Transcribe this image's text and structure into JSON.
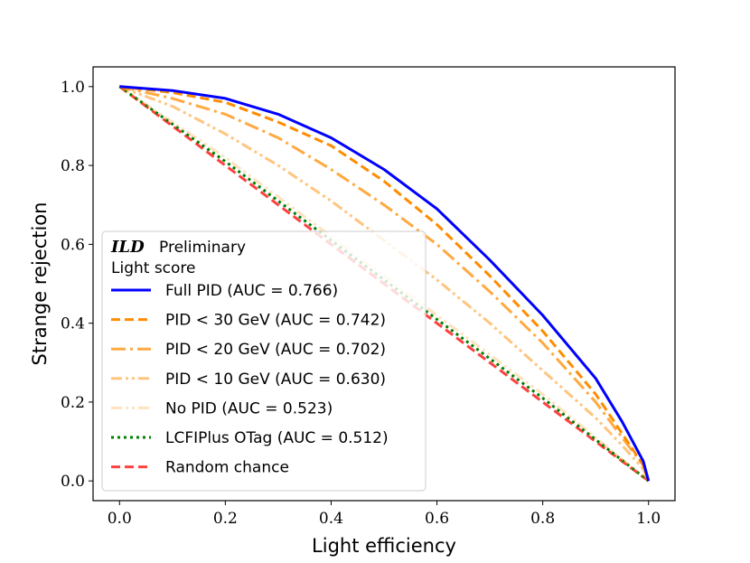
{
  "chart_data": {
    "type": "line",
    "xlabel": "Light efficiency",
    "ylabel": "Strange rejection",
    "xlim": [
      -0.05,
      1.05
    ],
    "ylim": [
      -0.05,
      1.05
    ],
    "x_ticks": [
      "0.0",
      "0.2",
      "0.4",
      "0.6",
      "0.8",
      "1.0"
    ],
    "y_ticks": [
      "0.0",
      "0.2",
      "0.4",
      "0.6",
      "0.8",
      "1.0"
    ],
    "legend": {
      "placement": "center-left",
      "brand": "ILD",
      "subtitle": "Preliminary",
      "title2": "Light score"
    },
    "series": [
      {
        "name": "Full PID (AUC = 0.766)",
        "color": "#0000ff",
        "dash": "solid",
        "opacity": 1.0,
        "x": [
          0,
          0.1,
          0.2,
          0.3,
          0.4,
          0.5,
          0.6,
          0.7,
          0.8,
          0.9,
          0.95,
          0.99,
          1.0
        ],
        "y": [
          1.0,
          0.99,
          0.97,
          0.93,
          0.87,
          0.79,
          0.69,
          0.56,
          0.42,
          0.26,
          0.15,
          0.05,
          0.0
        ]
      },
      {
        "name": "PID < 30 GeV (AUC = 0.742)",
        "color": "#ff8c00",
        "dash": "dashed",
        "opacity": 1.0,
        "x": [
          0,
          0.1,
          0.2,
          0.3,
          0.4,
          0.5,
          0.6,
          0.7,
          0.8,
          0.9,
          0.95,
          0.99,
          1.0
        ],
        "y": [
          1.0,
          0.985,
          0.96,
          0.91,
          0.85,
          0.76,
          0.65,
          0.52,
          0.38,
          0.22,
          0.12,
          0.04,
          0.0
        ]
      },
      {
        "name": "PID < 20 GeV (AUC = 0.702)",
        "color": "#ff8c00",
        "dash": "dashdot",
        "opacity": 0.75,
        "x": [
          0,
          0.1,
          0.2,
          0.3,
          0.4,
          0.5,
          0.6,
          0.7,
          0.8,
          0.9,
          0.95,
          0.99,
          1.0
        ],
        "y": [
          1.0,
          0.97,
          0.93,
          0.87,
          0.79,
          0.7,
          0.6,
          0.48,
          0.35,
          0.2,
          0.11,
          0.04,
          0.0
        ]
      },
      {
        "name": "PID < 10 GeV (AUC = 0.630)",
        "color": "#ff8c00",
        "dash": "dashdotdot",
        "opacity": 0.5,
        "x": [
          0,
          0.1,
          0.2,
          0.3,
          0.4,
          0.5,
          0.6,
          0.7,
          0.8,
          0.9,
          0.95,
          0.99,
          1.0
        ],
        "y": [
          1.0,
          0.95,
          0.88,
          0.8,
          0.71,
          0.61,
          0.51,
          0.4,
          0.28,
          0.16,
          0.09,
          0.03,
          0.0
        ]
      },
      {
        "name": "No PID (AUC = 0.523)",
        "color": "#ff8c00",
        "dash": "dashdotdot",
        "opacity": 0.25,
        "x": [
          0,
          0.1,
          0.2,
          0.3,
          0.4,
          0.5,
          0.6,
          0.7,
          0.8,
          0.9,
          1.0
        ],
        "y": [
          1.0,
          0.91,
          0.82,
          0.72,
          0.62,
          0.52,
          0.42,
          0.32,
          0.22,
          0.11,
          0.0
        ]
      },
      {
        "name": "LCFIPlus OTag (AUC = 0.512)",
        "color": "#008000",
        "dash": "dotted",
        "opacity": 1.0,
        "x": [
          0,
          0.1,
          0.2,
          0.3,
          0.4,
          0.5,
          0.6,
          0.7,
          0.8,
          0.9,
          1.0
        ],
        "y": [
          1.0,
          0.905,
          0.81,
          0.71,
          0.61,
          0.51,
          0.41,
          0.31,
          0.21,
          0.105,
          0.0
        ]
      },
      {
        "name": "Random chance",
        "color": "#ff0000",
        "dash": "dashed",
        "opacity": 0.75,
        "x": [
          0,
          1
        ],
        "y": [
          1,
          0
        ]
      }
    ]
  }
}
